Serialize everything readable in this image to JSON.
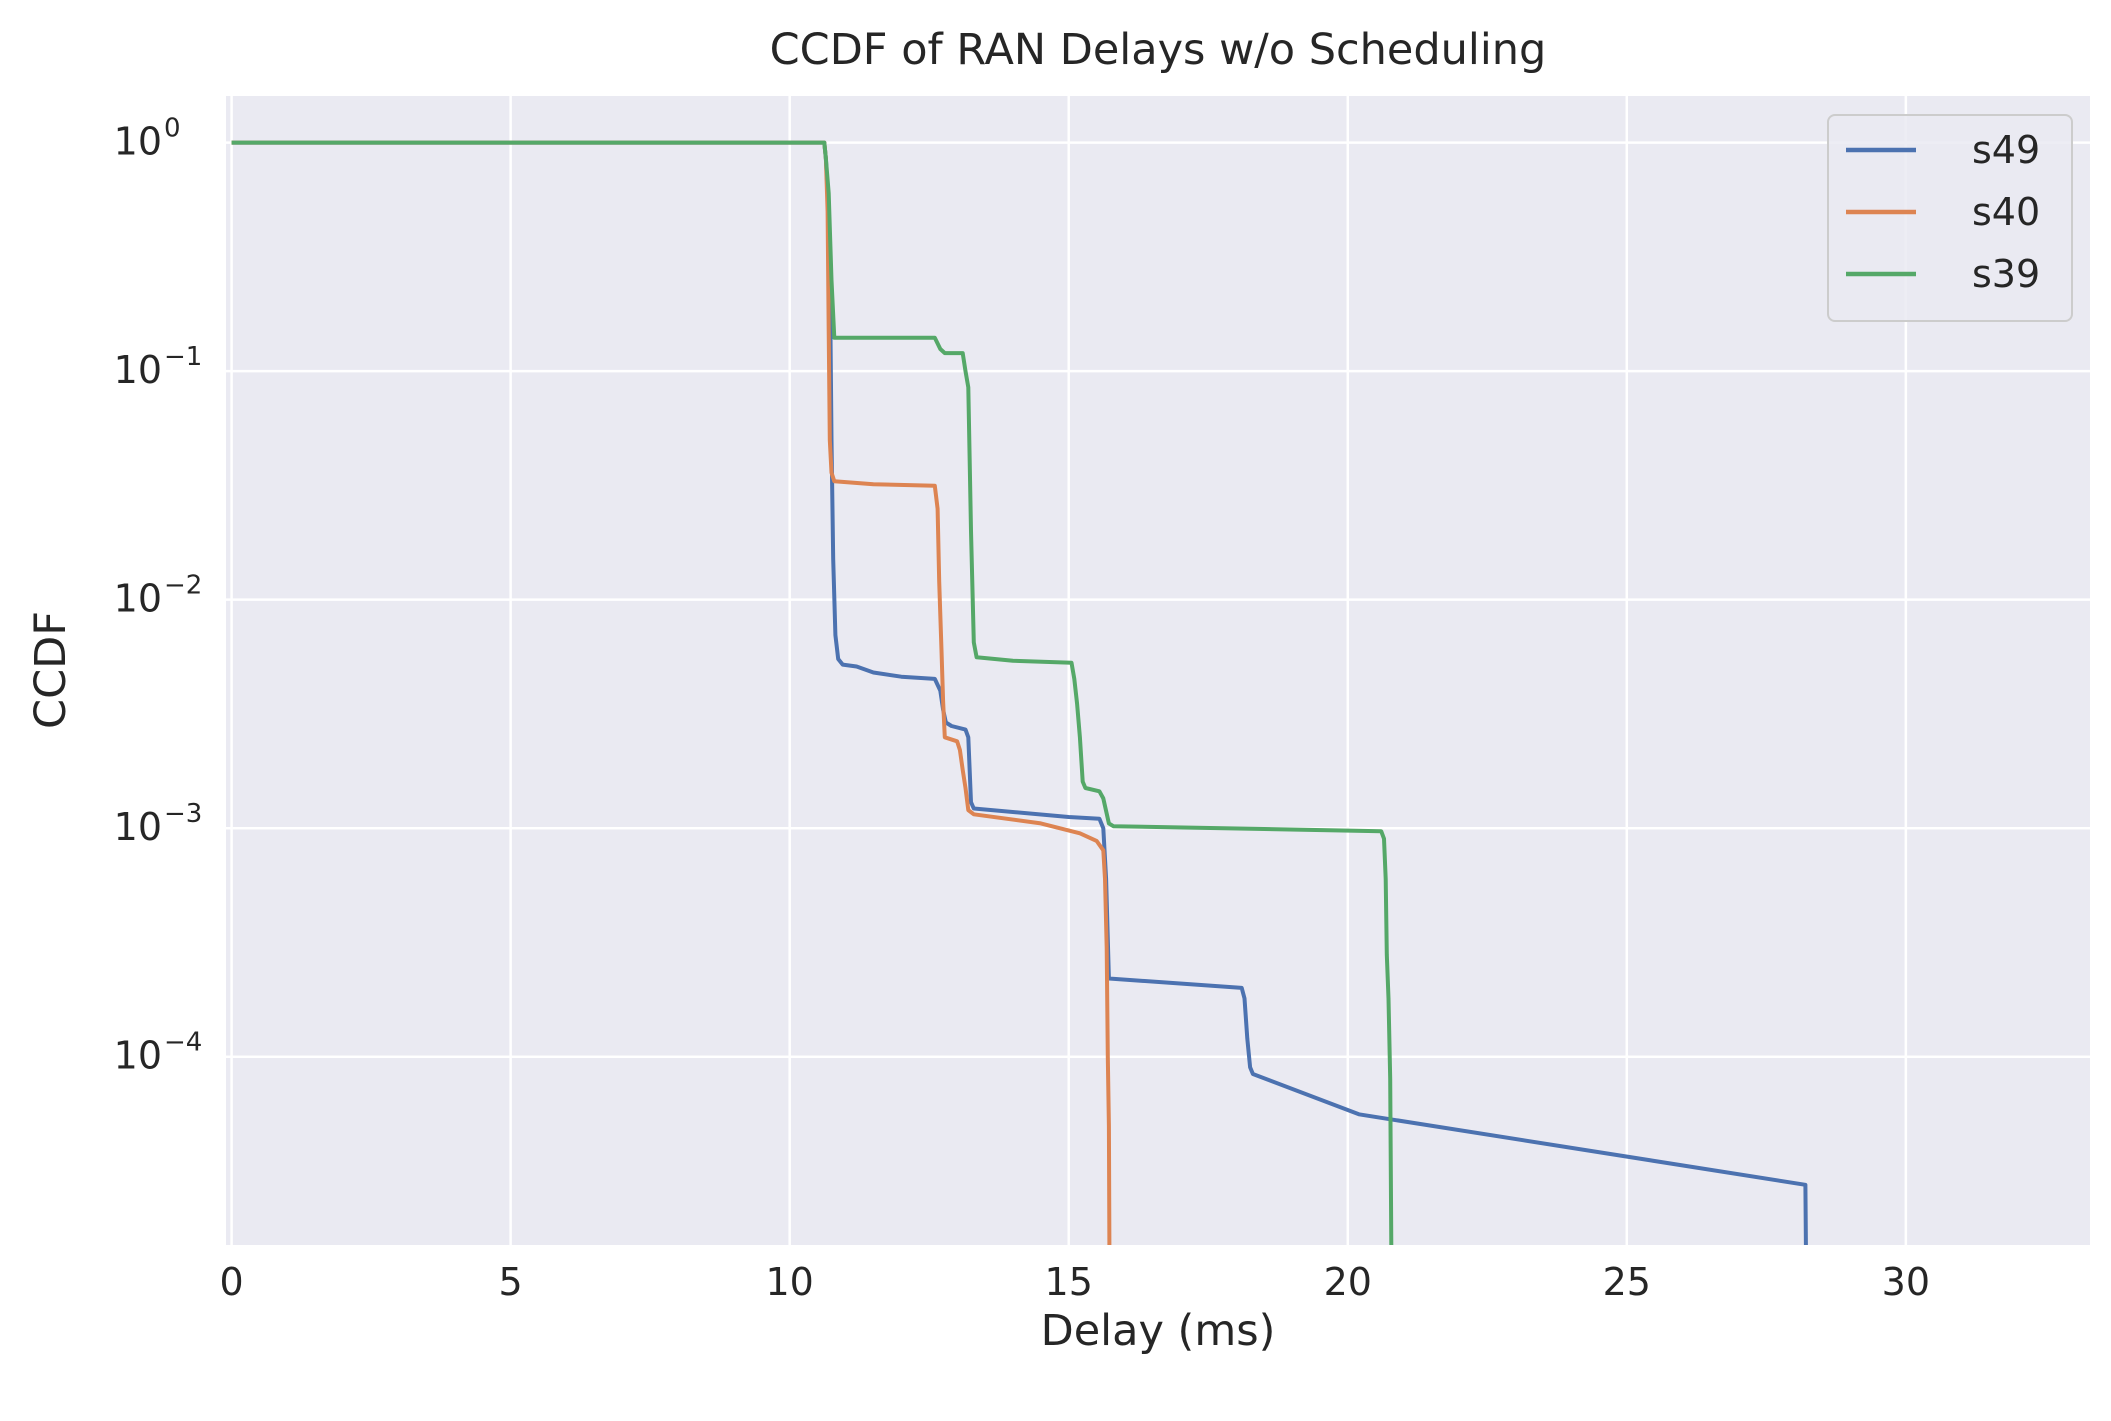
{
  "chart_data": {
    "type": "line",
    "title": "CCDF of RAN Delays w/o Scheduling",
    "xlabel": "Delay (ms)",
    "ylabel": "CCDF",
    "xlim": [
      -0.1,
      33.3
    ],
    "ylim": [
      1.5e-05,
      1.6
    ],
    "yscale": "log",
    "grid": true,
    "legend_position": "top-right",
    "x_ticks": [
      0,
      5,
      10,
      15,
      20,
      25,
      30
    ],
    "y_ticks": [
      {
        "value": 1,
        "base": "10",
        "exp": "0"
      },
      {
        "value": 0.1,
        "base": "10",
        "exp": "−1"
      },
      {
        "value": 0.01,
        "base": "10",
        "exp": "−2"
      },
      {
        "value": 0.001,
        "base": "10",
        "exp": "−3"
      },
      {
        "value": 0.0001,
        "base": "10",
        "exp": "−4"
      }
    ],
    "series": [
      {
        "name": "s49",
        "color": "#4C72B0",
        "points": [
          [
            0,
            1
          ],
          [
            10.62,
            1
          ],
          [
            10.65,
            0.85
          ],
          [
            10.68,
            0.6
          ],
          [
            10.72,
            0.3
          ],
          [
            10.75,
            0.05
          ],
          [
            10.78,
            0.015
          ],
          [
            10.82,
            0.007
          ],
          [
            10.87,
            0.0055
          ],
          [
            10.95,
            0.0052
          ],
          [
            11.2,
            0.0051
          ],
          [
            11.5,
            0.0048
          ],
          [
            12.0,
            0.0046
          ],
          [
            12.6,
            0.0045
          ],
          [
            12.7,
            0.004
          ],
          [
            12.75,
            0.0033
          ],
          [
            12.8,
            0.0029
          ],
          [
            12.9,
            0.0028
          ],
          [
            13.15,
            0.0027
          ],
          [
            13.2,
            0.0025
          ],
          [
            13.25,
            0.0013
          ],
          [
            13.3,
            0.00122
          ],
          [
            15.0,
            0.00112
          ],
          [
            15.55,
            0.0011
          ],
          [
            15.62,
            0.001
          ],
          [
            15.67,
            0.0006
          ],
          [
            15.72,
            0.00022
          ],
          [
            18.1,
            0.0002
          ],
          [
            18.15,
            0.00018
          ],
          [
            18.2,
            0.00012
          ],
          [
            18.25,
            9e-05
          ],
          [
            18.3,
            8.4e-05
          ],
          [
            20.2,
            5.6e-05
          ],
          [
            28.2,
            2.75e-05
          ],
          [
            28.21,
            1.5e-05
          ]
        ]
      },
      {
        "name": "s40",
        "color": "#DD8452",
        "points": [
          [
            0,
            1
          ],
          [
            10.62,
            1
          ],
          [
            10.65,
            0.85
          ],
          [
            10.68,
            0.5
          ],
          [
            10.7,
            0.15
          ],
          [
            10.72,
            0.05
          ],
          [
            10.75,
            0.036
          ],
          [
            10.8,
            0.033
          ],
          [
            11.5,
            0.032
          ],
          [
            12.6,
            0.0315
          ],
          [
            12.65,
            0.025
          ],
          [
            12.68,
            0.012
          ],
          [
            12.72,
            0.006
          ],
          [
            12.75,
            0.0036
          ],
          [
            12.78,
            0.0025
          ],
          [
            13.0,
            0.0024
          ],
          [
            13.05,
            0.0022
          ],
          [
            13.1,
            0.0018
          ],
          [
            13.15,
            0.0015
          ],
          [
            13.2,
            0.0012
          ],
          [
            13.3,
            0.00115
          ],
          [
            14.5,
            0.00105
          ],
          [
            15.2,
            0.00095
          ],
          [
            15.5,
            0.00088
          ],
          [
            15.62,
            0.0008
          ],
          [
            15.65,
            0.0006
          ],
          [
            15.68,
            0.0003
          ],
          [
            15.7,
            0.0001
          ],
          [
            15.72,
            5e-05
          ],
          [
            15.73,
            1.5e-05
          ]
        ]
      },
      {
        "name": "s39",
        "color": "#55A868",
        "points": [
          [
            0,
            1
          ],
          [
            10.62,
            1
          ],
          [
            10.65,
            0.85
          ],
          [
            10.7,
            0.6
          ],
          [
            10.75,
            0.25
          ],
          [
            10.8,
            0.14
          ],
          [
            12.6,
            0.14
          ],
          [
            12.7,
            0.125
          ],
          [
            12.78,
            0.12
          ],
          [
            13.1,
            0.12
          ],
          [
            13.15,
            0.1
          ],
          [
            13.2,
            0.085
          ],
          [
            13.25,
            0.02
          ],
          [
            13.3,
            0.0065
          ],
          [
            13.35,
            0.0056
          ],
          [
            14.0,
            0.0054
          ],
          [
            15.05,
            0.0053
          ],
          [
            15.1,
            0.0045
          ],
          [
            15.15,
            0.0035
          ],
          [
            15.2,
            0.0025
          ],
          [
            15.25,
            0.0016
          ],
          [
            15.3,
            0.0015
          ],
          [
            15.55,
            0.00145
          ],
          [
            15.62,
            0.00135
          ],
          [
            15.72,
            0.00105
          ],
          [
            15.8,
            0.00102
          ],
          [
            20.6,
            0.00097
          ],
          [
            20.65,
            0.0009
          ],
          [
            20.68,
            0.0006
          ],
          [
            20.7,
            0.00028
          ],
          [
            20.73,
            0.00018
          ],
          [
            20.76,
            8e-05
          ],
          [
            20.78,
            1.5e-05
          ]
        ]
      }
    ]
  }
}
